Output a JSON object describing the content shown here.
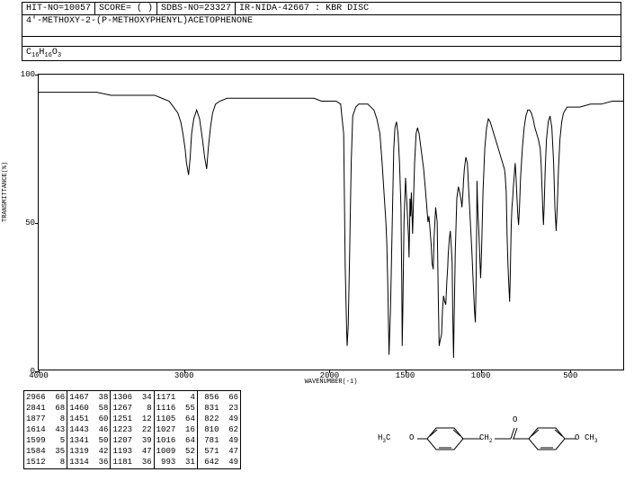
{
  "header": {
    "hit_no": "HIT-NO=10057",
    "score": "SCORE=  ( )",
    "sdbs_no": "SDBS-NO=23327",
    "ir_info": "IR-NIDA-42667 : KBR DISC"
  },
  "compound_name": "4'-METHOXY-2-(P-METHOXYPHENYL)ACETOPHENONE",
  "formula": {
    "c": 16,
    "h": 16,
    "o": 3
  },
  "chart": {
    "type": "line",
    "xlim": [
      4000,
      400
    ],
    "ylim": [
      0,
      100
    ],
    "xlabel": "WAVENUMBER(-1)",
    "ylabel": "TRANSMITTANCE(%)",
    "xticks": [
      4000,
      3000,
      2000,
      1500,
      1000,
      500
    ],
    "yticks": [
      0,
      50,
      100
    ],
    "line_color": "#000000",
    "background_color": "#ffffff",
    "spectrum": [
      [
        4000,
        94
      ],
      [
        3900,
        94
      ],
      [
        3800,
        94
      ],
      [
        3700,
        94
      ],
      [
        3600,
        94
      ],
      [
        3500,
        93
      ],
      [
        3400,
        93
      ],
      [
        3300,
        93
      ],
      [
        3200,
        93
      ],
      [
        3150,
        92
      ],
      [
        3100,
        91
      ],
      [
        3070,
        89
      ],
      [
        3040,
        87
      ],
      [
        3020,
        84
      ],
      [
        3005,
        80
      ],
      [
        2990,
        75
      ],
      [
        2980,
        70
      ],
      [
        2966,
        66
      ],
      [
        2955,
        72
      ],
      [
        2945,
        80
      ],
      [
        2930,
        85
      ],
      [
        2910,
        88
      ],
      [
        2890,
        85
      ],
      [
        2870,
        78
      ],
      [
        2855,
        72
      ],
      [
        2841,
        68
      ],
      [
        2830,
        75
      ],
      [
        2815,
        82
      ],
      [
        2800,
        87
      ],
      [
        2780,
        90
      ],
      [
        2750,
        91
      ],
      [
        2700,
        92
      ],
      [
        2600,
        92
      ],
      [
        2500,
        92
      ],
      [
        2400,
        92
      ],
      [
        2300,
        92
      ],
      [
        2200,
        92
      ],
      [
        2150,
        92
      ],
      [
        2100,
        92
      ],
      [
        2050,
        91
      ],
      [
        2000,
        91
      ],
      [
        1950,
        91
      ],
      [
        1920,
        90
      ],
      [
        1900,
        80
      ],
      [
        1890,
        35
      ],
      [
        1880,
        12
      ],
      [
        1877,
        8
      ],
      [
        1870,
        15
      ],
      [
        1860,
        40
      ],
      [
        1850,
        70
      ],
      [
        1840,
        86
      ],
      [
        1820,
        89
      ],
      [
        1800,
        90
      ],
      [
        1780,
        90
      ],
      [
        1760,
        90
      ],
      [
        1740,
        90
      ],
      [
        1720,
        89
      ],
      [
        1700,
        88
      ],
      [
        1680,
        85
      ],
      [
        1660,
        80
      ],
      [
        1645,
        70
      ],
      [
        1630,
        58
      ],
      [
        1620,
        50
      ],
      [
        1614,
        43
      ],
      [
        1608,
        30
      ],
      [
        1603,
        15
      ],
      [
        1599,
        5
      ],
      [
        1595,
        12
      ],
      [
        1590,
        20
      ],
      [
        1584,
        35
      ],
      [
        1578,
        50
      ],
      [
        1572,
        65
      ],
      [
        1568,
        75
      ],
      [
        1560,
        82
      ],
      [
        1550,
        84
      ],
      [
        1540,
        80
      ],
      [
        1530,
        70
      ],
      [
        1520,
        55
      ],
      [
        1515,
        30
      ],
      [
        1512,
        8
      ],
      [
        1508,
        20
      ],
      [
        1500,
        50
      ],
      [
        1490,
        65
      ],
      [
        1480,
        55
      ],
      [
        1470,
        45
      ],
      [
        1467,
        38
      ],
      [
        1463,
        48
      ],
      [
        1460,
        58
      ],
      [
        1456,
        52
      ],
      [
        1451,
        60
      ],
      [
        1447,
        53
      ],
      [
        1443,
        46
      ],
      [
        1438,
        55
      ],
      [
        1430,
        70
      ],
      [
        1420,
        80
      ],
      [
        1410,
        82
      ],
      [
        1400,
        80
      ],
      [
        1390,
        76
      ],
      [
        1380,
        72
      ],
      [
        1370,
        68
      ],
      [
        1360,
        62
      ],
      [
        1350,
        56
      ],
      [
        1341,
        50
      ],
      [
        1335,
        52
      ],
      [
        1328,
        48
      ],
      [
        1319,
        42
      ],
      [
        1314,
        36
      ],
      [
        1310,
        35
      ],
      [
        1306,
        34
      ],
      [
        1300,
        45
      ],
      [
        1290,
        55
      ],
      [
        1280,
        50
      ],
      [
        1273,
        25
      ],
      [
        1267,
        8
      ],
      [
        1260,
        10
      ],
      [
        1255,
        11
      ],
      [
        1251,
        12
      ],
      [
        1245,
        20
      ],
      [
        1238,
        25
      ],
      [
        1230,
        23
      ],
      [
        1223,
        22
      ],
      [
        1216,
        30
      ],
      [
        1210,
        35
      ],
      [
        1207,
        39
      ],
      [
        1200,
        44
      ],
      [
        1193,
        47
      ],
      [
        1187,
        42
      ],
      [
        1181,
        36
      ],
      [
        1177,
        20
      ],
      [
        1173,
        8
      ],
      [
        1171,
        4
      ],
      [
        1168,
        15
      ],
      [
        1160,
        40
      ],
      [
        1150,
        58
      ],
      [
        1140,
        62
      ],
      [
        1130,
        60
      ],
      [
        1120,
        57
      ],
      [
        1116,
        55
      ],
      [
        1112,
        58
      ],
      [
        1108,
        61
      ],
      [
        1105,
        64
      ],
      [
        1100,
        68
      ],
      [
        1090,
        72
      ],
      [
        1080,
        70
      ],
      [
        1070,
        60
      ],
      [
        1060,
        50
      ],
      [
        1050,
        40
      ],
      [
        1040,
        28
      ],
      [
        1033,
        20
      ],
      [
        1027,
        16
      ],
      [
        1022,
        30
      ],
      [
        1018,
        50
      ],
      [
        1016,
        64
      ],
      [
        1013,
        58
      ],
      [
        1009,
        52
      ],
      [
        1005,
        48
      ],
      [
        1000,
        42
      ],
      [
        996,
        35
      ],
      [
        993,
        31
      ],
      [
        988,
        40
      ],
      [
        980,
        60
      ],
      [
        970,
        75
      ],
      [
        960,
        82
      ],
      [
        950,
        85
      ],
      [
        940,
        84
      ],
      [
        930,
        82
      ],
      [
        920,
        80
      ],
      [
        910,
        78
      ],
      [
        900,
        76
      ],
      [
        890,
        74
      ],
      [
        880,
        72
      ],
      [
        870,
        70
      ],
      [
        860,
        68
      ],
      [
        856,
        66
      ],
      [
        850,
        60
      ],
      [
        845,
        45
      ],
      [
        840,
        35
      ],
      [
        835,
        28
      ],
      [
        831,
        23
      ],
      [
        828,
        30
      ],
      [
        825,
        40
      ],
      [
        822,
        49
      ],
      [
        818,
        55
      ],
      [
        814,
        58
      ],
      [
        810,
        62
      ],
      [
        805,
        66
      ],
      [
        800,
        70
      ],
      [
        795,
        65
      ],
      [
        790,
        58
      ],
      [
        785,
        52
      ],
      [
        781,
        49
      ],
      [
        776,
        55
      ],
      [
        770,
        65
      ],
      [
        760,
        75
      ],
      [
        750,
        82
      ],
      [
        740,
        86
      ],
      [
        730,
        88
      ],
      [
        720,
        88
      ],
      [
        710,
        87
      ],
      [
        700,
        85
      ],
      [
        690,
        82
      ],
      [
        680,
        80
      ],
      [
        670,
        78
      ],
      [
        660,
        75
      ],
      [
        655,
        70
      ],
      [
        650,
        62
      ],
      [
        646,
        55
      ],
      [
        642,
        49
      ],
      [
        638,
        55
      ],
      [
        632,
        68
      ],
      [
        625,
        78
      ],
      [
        615,
        84
      ],
      [
        605,
        86
      ],
      [
        595,
        82
      ],
      [
        585,
        70
      ],
      [
        578,
        55
      ],
      [
        571,
        47
      ],
      [
        565,
        55
      ],
      [
        558,
        68
      ],
      [
        550,
        78
      ],
      [
        540,
        84
      ],
      [
        530,
        87
      ],
      [
        520,
        88
      ],
      [
        510,
        89
      ],
      [
        500,
        89
      ],
      [
        480,
        89
      ],
      [
        460,
        90
      ],
      [
        440,
        90
      ],
      [
        420,
        91
      ],
      [
        400,
        91
      ]
    ]
  },
  "peak_table": {
    "columns_per_block": 2,
    "blocks": [
      [
        [
          "2966",
          "66"
        ],
        [
          "2841",
          "68"
        ],
        [
          "1877",
          " 8"
        ],
        [
          "1614",
          "43"
        ],
        [
          "1599",
          " 5"
        ],
        [
          "1584",
          "35"
        ],
        [
          "1512",
          " 8"
        ]
      ],
      [
        [
          "1467",
          "38"
        ],
        [
          "1460",
          "58"
        ],
        [
          "1451",
          "60"
        ],
        [
          "1443",
          "46"
        ],
        [
          "1341",
          "50"
        ],
        [
          "1319",
          "42"
        ],
        [
          "1314",
          "36"
        ]
      ],
      [
        [
          "1306",
          "34"
        ],
        [
          "1267",
          " 8"
        ],
        [
          "1251",
          "12"
        ],
        [
          "1223",
          "22"
        ],
        [
          "1207",
          "39"
        ],
        [
          "1193",
          "47"
        ],
        [
          "1181",
          "36"
        ]
      ],
      [
        [
          "1171",
          " 4"
        ],
        [
          "1116",
          "55"
        ],
        [
          "1105",
          "64"
        ],
        [
          "1027",
          "16"
        ],
        [
          "1016",
          "64"
        ],
        [
          "1009",
          "52"
        ],
        [
          " 993",
          "31"
        ]
      ],
      [
        [
          " 856",
          "66"
        ],
        [
          " 831",
          "23"
        ],
        [
          " 822",
          "49"
        ],
        [
          " 810",
          "62"
        ],
        [
          " 781",
          "49"
        ],
        [
          " 571",
          "47"
        ],
        [
          " 642",
          "49"
        ]
      ]
    ]
  },
  "molecule": {
    "left_group": "H₃C",
    "right_group": "CH₃",
    "ch2": "CH₂",
    "oxygen": "O"
  }
}
